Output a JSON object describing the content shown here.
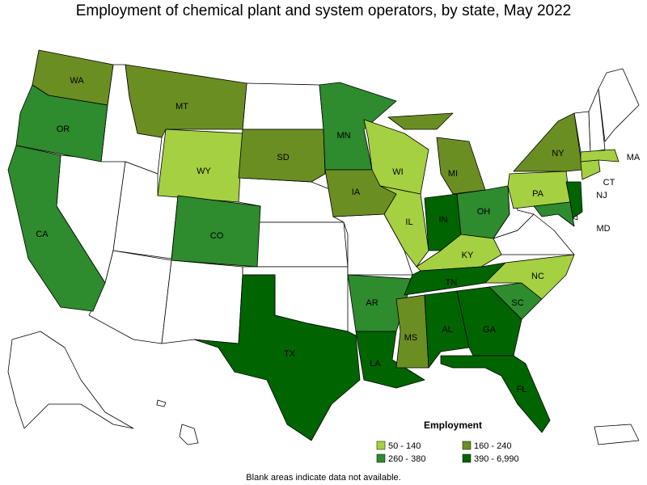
{
  "title": "Employment of chemical plant and system operators, by state, May 2022",
  "legend": {
    "title": "Employment",
    "items": [
      {
        "label": "50 - 140",
        "color": "#a5d042"
      },
      {
        "label": "160 - 240",
        "color": "#6b8e23"
      },
      {
        "label": "260 - 380",
        "color": "#2e8b2e"
      },
      {
        "label": "390 - 6,990",
        "color": "#006400"
      }
    ]
  },
  "states": [
    {
      "abbr": "WA",
      "class": 1
    },
    {
      "abbr": "OR",
      "class": 2
    },
    {
      "abbr": "CA",
      "class": 2
    },
    {
      "abbr": "MT",
      "class": 1
    },
    {
      "abbr": "WY",
      "class": 0
    },
    {
      "abbr": "CO",
      "class": 2
    },
    {
      "abbr": "SD",
      "class": 1
    },
    {
      "abbr": "TX",
      "class": 3
    },
    {
      "abbr": "MN",
      "class": 2
    },
    {
      "abbr": "IA",
      "class": 1
    },
    {
      "abbr": "AR",
      "class": 2
    },
    {
      "abbr": "LA",
      "class": 3
    },
    {
      "abbr": "WI",
      "class": 0
    },
    {
      "abbr": "IL",
      "class": 0
    },
    {
      "abbr": "MI",
      "class": 1
    },
    {
      "abbr": "IN",
      "class": 3
    },
    {
      "abbr": "OH",
      "class": 2
    },
    {
      "abbr": "KY",
      "class": 0
    },
    {
      "abbr": "TN",
      "class": 3
    },
    {
      "abbr": "MS",
      "class": 1
    },
    {
      "abbr": "AL",
      "class": 3
    },
    {
      "abbr": "GA",
      "class": 3
    },
    {
      "abbr": "FL",
      "class": 3
    },
    {
      "abbr": "SC",
      "class": 2
    },
    {
      "abbr": "NC",
      "class": 0
    },
    {
      "abbr": "PA",
      "class": 0
    },
    {
      "abbr": "NY",
      "class": 1
    },
    {
      "abbr": "NJ",
      "class": 3
    },
    {
      "abbr": "MD",
      "class": 2
    },
    {
      "abbr": "CT",
      "class": 0
    },
    {
      "abbr": "MA",
      "class": 0
    }
  ],
  "footnote": "Blank areas indicate data not available."
}
